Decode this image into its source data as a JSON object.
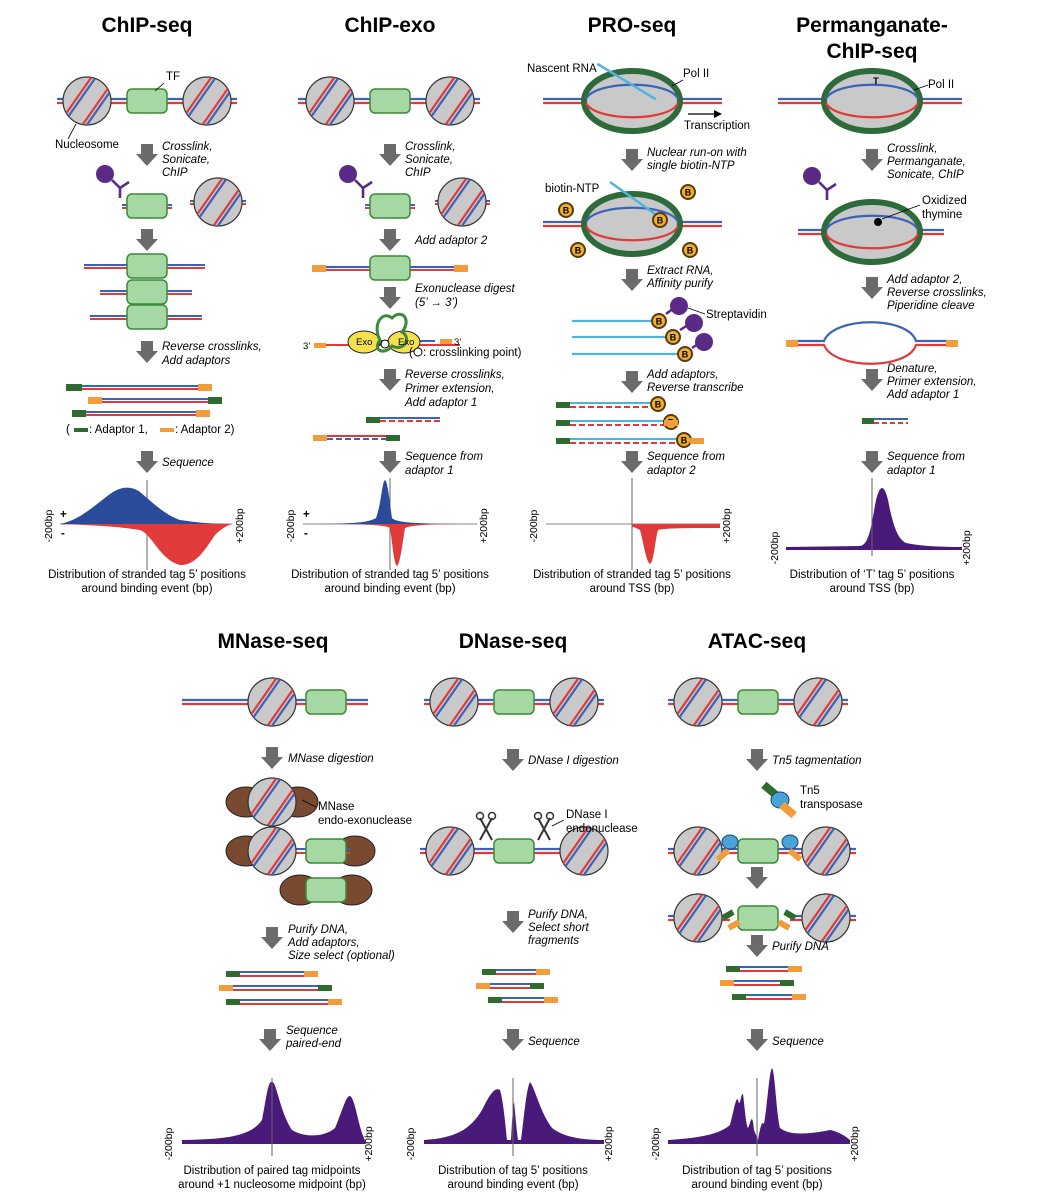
{
  "colors": {
    "dna_top": "#3b63b8",
    "dna_bottom": "#e03a3a",
    "nucleosome_fill": "#c9c9c9",
    "tf_fill": "#a6d8a4",
    "tf_stroke": "#3a8a3a",
    "arrow": "#6b6b6b",
    "adaptor1": "#2f6b2f",
    "adaptor2": "#f39c3a",
    "antibody": "#5b2a86",
    "polii_ring": "#2e6b3a",
    "rna": "#4fb3e0",
    "biotin": "#f0b030",
    "exo": "#f5e050",
    "mnase": "#7a4a30",
    "tn5": "#4aa3d8",
    "profile_plus": "#2a4a9a",
    "profile_minus": "#e03a3a",
    "profile_purple": "#4a1a7a"
  },
  "panels": {
    "chipseq": {
      "title": "ChIP-seq",
      "labels": {
        "tf": "TF",
        "nucleosome": "Nucleosome"
      },
      "steps": [
        "Crosslink,",
        "Sonicate,",
        "ChIP",
        "Reverse crosslinks,",
        "Add adaptors",
        "Sequence"
      ],
      "legend": {
        "open": "(",
        "a1": ": Adaptor 1,",
        "a2": ": Adaptor 2)"
      },
      "axis": {
        "left": "-200bp",
        "right": "+200bp",
        "plus": "+",
        "minus": "-"
      },
      "caption": [
        "Distribution of stranded tag 5’ positions",
        "around binding event (bp)"
      ]
    },
    "chipexo": {
      "title": "ChIP-exo",
      "steps": [
        "Crosslink,",
        "Sonicate,",
        "ChIP",
        "Add adaptor 2",
        "Exonuclease digest",
        "(5’ → 3’)",
        "Reverse crosslinks,",
        "Primer extension,",
        "Add adaptor 1",
        "Sequence from",
        "adaptor 1"
      ],
      "labels": {
        "exo": "Exo",
        "three_prime": "3’",
        "crosslink": ": crosslinking point)",
        "paren": "("
      },
      "axis": {
        "left": "-200bp",
        "right": "+200bp",
        "plus": "+",
        "minus": "-"
      },
      "caption": [
        "Distribution of stranded tag 5’ positions",
        "around binding event (bp)"
      ]
    },
    "proseq": {
      "title": "PRO-seq",
      "labels": {
        "nascent": "Nascent RNA",
        "polii": "Pol II",
        "transcription": "Transcription",
        "biotin_ntp": "biotin-NTP",
        "streptavidin": "Streptavidin",
        "b": "B"
      },
      "steps": [
        "Nuclear run-on with",
        "single biotin-NTP",
        "Extract RNA,",
        "Affinity purify",
        "Add adaptors,",
        "Reverse transcribe",
        "Sequence from",
        "adaptor 2"
      ],
      "axis": {
        "left": "-200bp",
        "right": "+200bp"
      },
      "caption": [
        "Distribution of stranded tag 5’ positions",
        "around TSS (bp)"
      ]
    },
    "permanganate": {
      "title": [
        "Permanganate-",
        "ChIP-seq"
      ],
      "labels": {
        "polii": "Pol II",
        "oxidized": [
          "Oxidized",
          "thymine"
        ],
        "t": "T"
      },
      "steps": [
        "Crosslink,",
        "Permanganate,",
        "Sonicate, ChIP",
        "Add adaptor 2,",
        "Reverse crosslinks,",
        "Piperidine cleave",
        "Denature,",
        "Primer extension,",
        "Add adaptor 1",
        "Sequence from",
        "adaptor 1"
      ],
      "axis": {
        "left": "-200bp",
        "right": "+200bp"
      },
      "caption": [
        "Distribution of ‘T’ tag 5’ positions",
        "around TSS (bp)"
      ]
    },
    "mnase": {
      "title": "MNase-seq",
      "labels": {
        "enzyme": [
          "MNase",
          "endo-exonuclease"
        ]
      },
      "steps": [
        "MNase digestion",
        "Purify DNA,",
        "Add adaptors,",
        "Size select (optional)",
        "Sequence",
        "paired-end"
      ],
      "axis": {
        "left": "-200bp",
        "right": "+200bp"
      },
      "caption": [
        "Distribution of paired tag midpoints",
        "around +1 nucleosome midpoint (bp)"
      ]
    },
    "dnase": {
      "title": "DNase-seq",
      "labels": {
        "enzyme": [
          "DNase I",
          "endonuclease"
        ]
      },
      "steps": [
        "DNase I digestion",
        "Purify DNA,",
        "Select short",
        "fragments",
        "Sequence"
      ],
      "axis": {
        "left": "-200bp",
        "right": "+200bp"
      },
      "caption": [
        "Distribution of tag 5’ positions",
        "around binding event (bp)"
      ]
    },
    "atac": {
      "title": "ATAC-seq",
      "labels": {
        "enzyme": [
          "Tn5",
          "transposase"
        ]
      },
      "steps": [
        "Tn5 tagmentation",
        "Purify DNA",
        "Sequence"
      ],
      "axis": {
        "left": "-200bp",
        "right": "+200bp"
      },
      "caption": [
        "Distribution of tag 5’ positions",
        "around binding event (bp)"
      ]
    }
  }
}
